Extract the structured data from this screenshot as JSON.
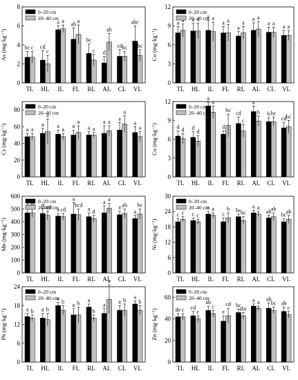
{
  "legend": {
    "depth1": "0–20 cm",
    "depth2": "20–40 cm"
  },
  "colors": {
    "depth1": "#000000",
    "depth2": "#bfbfbf"
  },
  "chart_data": [
    {
      "type": "bar",
      "ylabel": "As (mg·kg⁻¹)",
      "ylim": [
        0,
        8
      ],
      "yticks": [
        0,
        2,
        4,
        6,
        8
      ],
      "categories": [
        "TL",
        "HL",
        "IL",
        "FL",
        "RL",
        "AL",
        "CL",
        "VL"
      ],
      "series": [
        {
          "name": "0–20 cm",
          "values": [
            2.7,
            2.4,
            5.6,
            4.6,
            3.1,
            2.1,
            2.8,
            4.4
          ],
          "errors": [
            0.6,
            1.0,
            0.4,
            1.2,
            1.0,
            0.7,
            0.7,
            1.6
          ],
          "letters": [
            "bc",
            "cd",
            "a",
            "ab",
            "bc",
            "d",
            "cd",
            "abc"
          ]
        },
        {
          "name": "20–40 cm",
          "values": [
            2.7,
            2.0,
            5.7,
            5.1,
            2.4,
            4.3,
            2.8,
            2.9
          ],
          "errors": [
            0.6,
            0.9,
            0.4,
            1.0,
            0.6,
            0.9,
            0.5,
            0.6
          ],
          "letters": [
            "c",
            "c",
            "a",
            "a",
            "c",
            "ab",
            "bc",
            "bc"
          ]
        }
      ]
    },
    {
      "type": "bar",
      "ylabel": "Co (mg·kg⁻¹)",
      "ylim": [
        0,
        12
      ],
      "yticks": [
        0,
        3,
        6,
        9,
        12
      ],
      "categories": [
        "TL",
        "HL",
        "IL",
        "FL",
        "RL",
        "AL",
        "CL",
        "VL"
      ],
      "series": [
        {
          "name": "0–20 cm",
          "values": [
            7.9,
            8.2,
            8.3,
            7.9,
            7.4,
            8.3,
            8.0,
            7.5
          ],
          "errors": [
            1.0,
            1.2,
            1.6,
            1.0,
            0.7,
            1.2,
            0.8,
            0.8
          ],
          "letters": [
            "a",
            "a",
            "a",
            "a",
            "a",
            "a",
            "a",
            "a"
          ]
        },
        {
          "name": "20–40 cm",
          "values": [
            8.3,
            8.2,
            8.1,
            7.9,
            7.9,
            8.5,
            8.0,
            7.5
          ],
          "errors": [
            1.0,
            1.2,
            1.5,
            1.3,
            1.0,
            1.2,
            0.8,
            0.8
          ],
          "letters": [
            "a",
            "a",
            "a",
            "a",
            "a",
            "a",
            "a",
            "a"
          ]
        }
      ]
    },
    {
      "type": "bar",
      "ylabel": "Cr (mg·kg⁻¹)",
      "ylim": [
        0,
        90
      ],
      "yticks": [
        0,
        20,
        40,
        60,
        80
      ],
      "categories": [
        "TL",
        "HL",
        "IL",
        "FL",
        "RL",
        "AL",
        "CL",
        "VL"
      ],
      "series": [
        {
          "name": "0–20 cm",
          "values": [
            48,
            52,
            51,
            50,
            50,
            52,
            56,
            53
          ],
          "errors": [
            4,
            6,
            5,
            6,
            4,
            9,
            9,
            7
          ],
          "letters": [
            "a",
            "a",
            "a",
            "a",
            "a",
            "a",
            "a",
            "a"
          ]
        },
        {
          "name": "20–40 cm",
          "values": [
            48,
            54,
            48,
            53,
            50,
            55,
            63,
            48
          ],
          "errors": [
            4,
            15,
            4,
            8,
            3,
            6,
            10,
            6
          ],
          "letters": [
            "a",
            "a",
            "a",
            "a",
            "a",
            "a",
            "a",
            "a"
          ]
        }
      ]
    },
    {
      "type": "bar",
      "ylabel": "Cu (mg·kg⁻¹)",
      "ylim": [
        0,
        12
      ],
      "yticks": [
        0,
        3,
        6,
        9,
        12
      ],
      "categories": [
        "TL",
        "HL",
        "IL",
        "FL",
        "RL",
        "AL",
        "CL",
        "VL"
      ],
      "series": [
        {
          "name": "0–20 cm",
          "values": [
            6.5,
            6.3,
            11.3,
            6.8,
            8.5,
            10.4,
            8.8,
            7.8
          ],
          "errors": [
            0.8,
            0.9,
            0.6,
            0.5,
            1.0,
            0.9,
            0.6,
            0.9
          ],
          "letters": [
            "d",
            "d",
            "a",
            "d",
            "cd",
            "a",
            "b",
            "cd"
          ]
        },
        {
          "name": "20–40 cm",
          "values": [
            6.1,
            5.7,
            10.3,
            8.2,
            7.3,
            8.9,
            8.8,
            8.0
          ],
          "errors": [
            0.8,
            0.9,
            1.0,
            1.8,
            1.0,
            0.8,
            0.7,
            1.0
          ],
          "letters": [
            "d",
            "d",
            "a",
            "bc",
            "c",
            "b",
            "bc",
            "bc"
          ]
        }
      ]
    },
    {
      "type": "bar",
      "ylabel": "Mn (mg·kg⁻¹)",
      "ylim": [
        0,
        600
      ],
      "yticks": [
        0,
        100,
        200,
        300,
        400,
        500,
        600
      ],
      "categories": [
        "TL",
        "HL",
        "IL",
        "FL",
        "RL",
        "AL",
        "CL",
        "VL"
      ],
      "series": [
        {
          "name": "0–20 cm",
          "values": [
            470,
            465,
            445,
            460,
            440,
            470,
            455,
            425
          ],
          "errors": [
            35,
            40,
            20,
            90,
            30,
            55,
            30,
            25
          ],
          "letters": [
            "a",
            "a",
            "a",
            "a",
            "a",
            "a",
            "a",
            "a"
          ]
        },
        {
          "name": "20–40 cm",
          "values": [
            470,
            450,
            440,
            455,
            425,
            505,
            465,
            460
          ],
          "errors": [
            35,
            35,
            25,
            45,
            25,
            40,
            35,
            40
          ],
          "letters": [
            "ab",
            "bcd",
            "cd",
            "bcd",
            "d",
            "a",
            "ab",
            "bc"
          ]
        }
      ]
    },
    {
      "type": "bar",
      "ylabel": "Ni (mg·kg⁻¹)",
      "ylim": [
        0,
        30
      ],
      "yticks": [
        0,
        6,
        12,
        18,
        24,
        30
      ],
      "categories": [
        "TL",
        "HL",
        "IL",
        "FL",
        "RL",
        "AL",
        "CL",
        "VL"
      ],
      "series": [
        {
          "name": "0–20 cm",
          "values": [
            20.0,
            20.5,
            23.0,
            20.0,
            22.0,
            23.5,
            21.5,
            20.0
          ],
          "errors": [
            1.2,
            1.0,
            1.0,
            1.5,
            1.0,
            1.0,
            1.0,
            1.2
          ],
          "letters": [
            "c",
            "c",
            "a",
            "c",
            "bc",
            "a",
            "ab",
            "bc"
          ]
        },
        {
          "name": "20–40 cm",
          "values": [
            21.0,
            20.0,
            22.5,
            21.5,
            20.5,
            23.0,
            22.0,
            21.0
          ],
          "errors": [
            1.0,
            1.0,
            1.0,
            2.0,
            1.5,
            1.0,
            1.5,
            1.5
          ],
          "letters": [
            "c",
            "c",
            "a",
            "b",
            "bc",
            "a",
            "ab",
            "ab"
          ]
        }
      ]
    },
    {
      "type": "bar",
      "ylabel": "Pb (mg·kg⁻¹)",
      "ylim": [
        0,
        24
      ],
      "yticks": [
        0,
        6,
        12,
        18,
        24
      ],
      "categories": [
        "TL",
        "HL",
        "IL",
        "FL",
        "RL",
        "AL",
        "CL",
        "VL"
      ],
      "series": [
        {
          "name": "0–20 cm",
          "values": [
            14.5,
            14.0,
            18.0,
            15.0,
            17.5,
            15.5,
            16.5,
            18.5
          ],
          "errors": [
            1.0,
            1.5,
            1.0,
            2.0,
            1.0,
            1.5,
            1.5,
            1.0
          ],
          "letters": [
            "a",
            "a",
            "a",
            "a",
            "a",
            "a",
            "a",
            "a"
          ]
        },
        {
          "name": "20–40 cm",
          "values": [
            14.0,
            13.5,
            16.5,
            15.0,
            14.0,
            20.0,
            16.5,
            16.5
          ],
          "errors": [
            1.0,
            2.0,
            1.5,
            2.5,
            1.0,
            4.5,
            2.0,
            1.5
          ],
          "letters": [
            "b",
            "b",
            "b",
            "b",
            "b",
            "a",
            "b",
            "b"
          ]
        }
      ]
    },
    {
      "type": "bar",
      "ylabel": "Zn (mg·kg⁻¹)",
      "ylim": [
        0,
        70
      ],
      "yticks": [
        0,
        20,
        40,
        60
      ],
      "categories": [
        "TL",
        "HL",
        "IL",
        "FL",
        "RL",
        "AL",
        "CL",
        "VL"
      ],
      "series": [
        {
          "name": "0–20 cm",
          "values": [
            42,
            43,
            48,
            38,
            46,
            52,
            50,
            47
          ],
          "errors": [
            3,
            4,
            4,
            5,
            3,
            2,
            5,
            4
          ],
          "letters": [
            "de",
            "cd",
            "ab",
            "e",
            "bc",
            "a",
            "ab",
            "ab"
          ]
        },
        {
          "name": "20–40 cm",
          "values": [
            42,
            40,
            45,
            43,
            43,
            50,
            48,
            44
          ],
          "errors": [
            3,
            3,
            3,
            7,
            3,
            2,
            3,
            3
          ],
          "letters": [
            "c",
            "c",
            "c",
            "cd",
            "abc",
            "a",
            "bc",
            "c"
          ]
        }
      ]
    }
  ]
}
